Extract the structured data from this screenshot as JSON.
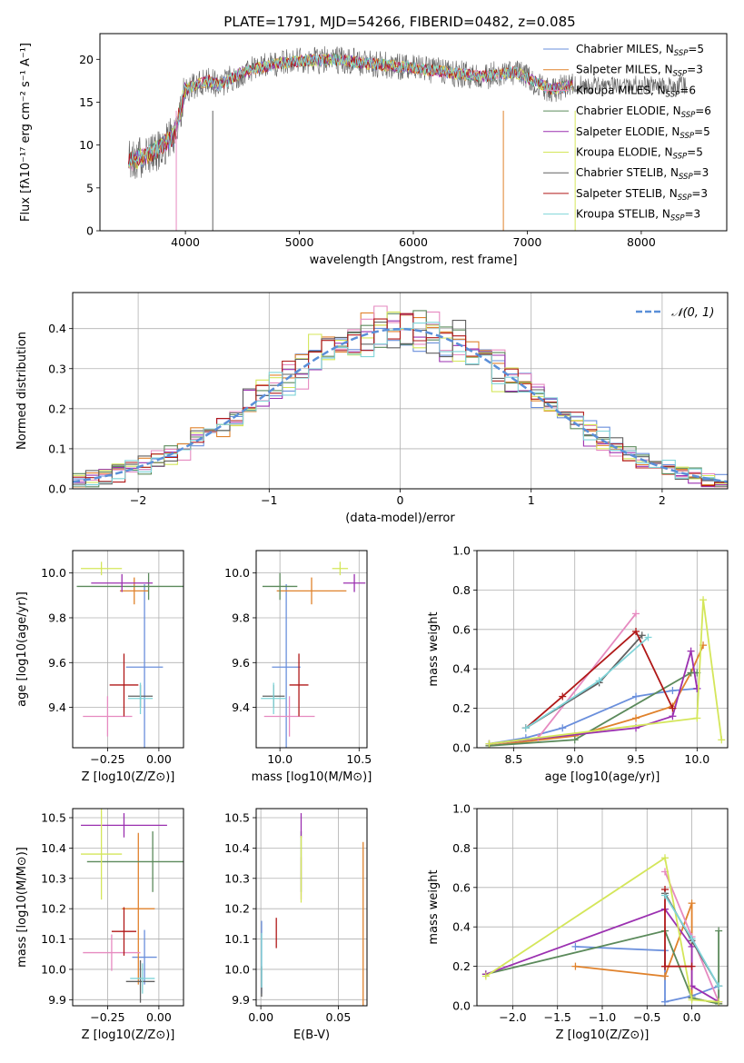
{
  "figure": {
    "title": "PLATE=1791, MJD=54266, FIBERID=0482, z=0.085"
  },
  "colors": {
    "series": [
      "#6a8fdc",
      "#e0822c",
      "#e68ac0",
      "#5b8a5b",
      "#9b30b0",
      "#d4e65a",
      "#606060",
      "#b01818",
      "#7fd4d8"
    ],
    "grid": "#b0b0b0"
  },
  "chart_data": [
    {
      "id": "spectrum",
      "type": "line",
      "xlabel": "wavelength [Angstrom, rest frame]",
      "ylabel": "Flux [fλ10⁻¹⁷ erg cm⁻² s⁻¹ A⁻¹]",
      "xlim": [
        3250,
        8750
      ],
      "ylim": [
        0,
        23
      ],
      "xticks": [
        4000,
        5000,
        6000,
        7000,
        8000
      ],
      "yticks": [
        0,
        5,
        10,
        15,
        20
      ],
      "grid": false,
      "legend": "right",
      "x": [
        3500,
        3700,
        3900,
        4000,
        4200,
        4300,
        4500,
        4800,
        5000,
        5300,
        5600,
        6000,
        6300,
        6600,
        6900,
        7200,
        7400
      ],
      "y": [
        8,
        9,
        11,
        16.5,
        17.5,
        17,
        18.5,
        19.5,
        19.8,
        20,
        19.5,
        19,
        18.5,
        18,
        18.5,
        16.5,
        17
      ],
      "series": [
        {
          "name": "Chabrier MILES, N_SSP=5",
          "legend": "Chabrier MILES, N",
          "nssp": "=5"
        },
        {
          "name": "Salpeter MILES, N_SSP=3",
          "legend": "Salpeter MILES, N",
          "nssp": "=3"
        },
        {
          "name": "Kroupa MILES, N_SSP=6",
          "legend": "Kroupa MILES, N",
          "nssp": "=6"
        },
        {
          "name": "Chabrier ELODIE, N_SSP=6",
          "legend": "Chabrier ELODIE, N",
          "nssp": "=6"
        },
        {
          "name": "Salpeter ELODIE, N_SSP=5",
          "legend": "Salpeter ELODIE, N",
          "nssp": "=5"
        },
        {
          "name": "Kroupa ELODIE, N_SSP=5",
          "legend": "Kroupa ELODIE, N",
          "nssp": "=5"
        },
        {
          "name": "Chabrier STELIB, N_SSP=3",
          "legend": "Chabrier STELIB, N",
          "nssp": "=3"
        },
        {
          "name": "Salpeter STELIB, N_SSP=3",
          "legend": "Salpeter STELIB, N",
          "nssp": "=3"
        },
        {
          "name": "Kroupa STELIB, N_SSP=3",
          "legend": "Kroupa STELIB, N",
          "nssp": "=3"
        }
      ]
    },
    {
      "id": "residuals",
      "type": "histogram",
      "xlabel": "(data-model)/error",
      "ylabel": "Normed distribution",
      "xlim": [
        -2.5,
        2.5
      ],
      "ylim": [
        0,
        0.49
      ],
      "xticks": [
        -2,
        -1,
        0,
        1,
        2
      ],
      "yticks": [
        0.0,
        0.1,
        0.2,
        0.3,
        0.4
      ],
      "grid": true,
      "legend": "top-right",
      "reference_curve": {
        "name": "N(0,1)",
        "mean": 0,
        "sigma": 1
      },
      "bin_width": 0.1
    },
    {
      "id": "age-vs-Z",
      "type": "scatter",
      "xlabel": "Z [log10(Z/Z⊙)]",
      "ylabel": "age  [log10(age/yr)]",
      "xlim": [
        -0.42,
        0.12
      ],
      "ylim": [
        9.22,
        10.1
      ],
      "xticks": [
        -0.25,
        0.0
      ],
      "yticks": [
        9.4,
        9.6,
        9.8,
        10.0
      ],
      "grid": true,
      "points": [
        {
          "x": -0.07,
          "y": 9.58,
          "xerr": 0.09,
          "yerr": 0.37
        },
        {
          "x": -0.12,
          "y": 9.92,
          "xerr": 0.07,
          "yerr": 0.06
        },
        {
          "x": -0.25,
          "y": 9.36,
          "xerr": 0.12,
          "yerr": 0.09
        },
        {
          "x": -0.05,
          "y": 9.94,
          "xerr": 0.35,
          "yerr": 0.06
        },
        {
          "x": -0.18,
          "y": 9.955,
          "xerr": 0.15,
          "yerr": 0.04
        },
        {
          "x": -0.28,
          "y": 10.02,
          "xerr": 0.1,
          "yerr": 0.03
        },
        {
          "x": -0.09,
          "y": 9.45,
          "xerr": 0.06,
          "yerr": 0.05
        },
        {
          "x": -0.17,
          "y": 9.5,
          "xerr": 0.07,
          "yerr": 0.14
        },
        {
          "x": -0.09,
          "y": 9.44,
          "xerr": 0.06,
          "yerr": 0.07
        }
      ]
    },
    {
      "id": "age-vs-mass",
      "type": "scatter",
      "xlabel": "mass [log10(M/M⊙)]",
      "ylabel": "",
      "xlim": [
        9.85,
        10.55
      ],
      "ylim": [
        9.22,
        10.1
      ],
      "xticks": [
        10.0,
        10.5
      ],
      "yticks": [
        9.4,
        9.6,
        9.8,
        10.0
      ],
      "grid": true,
      "points": [
        {
          "x": 10.04,
          "y": 9.58,
          "xerr": 0.09,
          "yerr": 0.37
        },
        {
          "x": 10.2,
          "y": 9.92,
          "xerr": 0.22,
          "yerr": 0.06
        },
        {
          "x": 10.06,
          "y": 9.36,
          "xerr": 0.16,
          "yerr": 0.09
        },
        {
          "x": 10.0,
          "y": 9.94,
          "xerr": 0.11,
          "yerr": 0.06
        },
        {
          "x": 10.47,
          "y": 9.955,
          "xerr": 0.07,
          "yerr": 0.04
        },
        {
          "x": 10.38,
          "y": 10.02,
          "xerr": 0.05,
          "yerr": 0.03
        },
        {
          "x": 9.96,
          "y": 9.45,
          "xerr": 0.07,
          "yerr": 0.05
        },
        {
          "x": 10.12,
          "y": 9.5,
          "xerr": 0.06,
          "yerr": 0.14
        },
        {
          "x": 9.96,
          "y": 9.44,
          "xerr": 0.08,
          "yerr": 0.07
        }
      ]
    },
    {
      "id": "weight-vs-age",
      "type": "line",
      "xlabel": "age  [log10(age/yr)]",
      "ylabel": "mass weight",
      "xlim": [
        8.2,
        10.25
      ],
      "ylim": [
        0,
        1.0
      ],
      "xticks": [
        8.5,
        9.0,
        9.5,
        10.0
      ],
      "yticks": [
        0.0,
        0.2,
        0.4,
        0.6,
        0.8,
        1.0
      ],
      "grid": true,
      "series": [
        {
          "x": [
            8.3,
            8.6,
            8.9,
            9.5,
            9.8,
            10.0
          ],
          "y": [
            0.02,
            0.05,
            0.1,
            0.26,
            0.29,
            0.3
          ]
        },
        {
          "x": [
            8.3,
            9.0,
            9.5,
            9.8,
            9.95,
            10.05
          ],
          "y": [
            0.01,
            0.06,
            0.15,
            0.21,
            0.38,
            0.52
          ]
        },
        {
          "x": [
            8.7,
            9.5
          ],
          "y": [
            0.05,
            0.68
          ]
        },
        {
          "x": [
            8.3,
            9.0,
            9.95,
            10.0
          ],
          "y": [
            0.01,
            0.04,
            0.38,
            0.38
          ]
        },
        {
          "x": [
            8.3,
            9.5,
            9.8,
            9.95,
            10.0
          ],
          "y": [
            0.02,
            0.1,
            0.16,
            0.49,
            0.3
          ]
        },
        {
          "x": [
            8.3,
            10.0,
            10.05,
            10.2
          ],
          "y": [
            0.02,
            0.15,
            0.75,
            0.04
          ]
        },
        {
          "x": [
            8.6,
            9.2,
            9.55
          ],
          "y": [
            0.1,
            0.33,
            0.57
          ]
        },
        {
          "x": [
            8.6,
            8.9,
            9.5,
            9.8
          ],
          "y": [
            0.1,
            0.26,
            0.59,
            0.2
          ]
        },
        {
          "x": [
            8.6,
            9.2,
            9.6
          ],
          "y": [
            0.1,
            0.34,
            0.56
          ]
        }
      ]
    },
    {
      "id": "mass-vs-Z",
      "type": "scatter",
      "xlabel": "Z [log10(Z/Z⊙)]",
      "ylabel": "mass [log10(M/M⊙)]",
      "xlim": [
        -0.42,
        0.12
      ],
      "ylim": [
        9.88,
        10.53
      ],
      "xticks": [
        -0.25,
        0.0
      ],
      "yticks": [
        9.9,
        10.0,
        10.1,
        10.2,
        10.3,
        10.4,
        10.5
      ],
      "grid": true,
      "points": [
        {
          "x": -0.07,
          "y": 10.04,
          "xerr": 0.06,
          "yerr": 0.09
        },
        {
          "x": -0.1,
          "y": 10.2,
          "xerr": 0.08,
          "yerr": 0.25
        },
        {
          "x": -0.23,
          "y": 10.055,
          "xerr": 0.14,
          "yerr": 0.06
        },
        {
          "x": -0.03,
          "y": 10.355,
          "xerr": 0.32,
          "yerr": 0.1
        },
        {
          "x": -0.17,
          "y": 10.475,
          "xerr": 0.21,
          "yerr": 0.04
        },
        {
          "x": -0.28,
          "y": 10.38,
          "xerr": 0.1,
          "yerr": 0.15
        },
        {
          "x": -0.09,
          "y": 9.96,
          "xerr": 0.07,
          "yerr": 0.07
        },
        {
          "x": -0.17,
          "y": 10.125,
          "xerr": 0.06,
          "yerr": 0.08
        },
        {
          "x": -0.08,
          "y": 9.97,
          "xerr": 0.06,
          "yerr": 0.05
        }
      ]
    },
    {
      "id": "mass-vs-ebv",
      "type": "scatter",
      "xlabel": "E(B-V)",
      "ylabel": "",
      "xlim": [
        -0.003,
        0.0685
      ],
      "ylim": [
        9.88,
        10.53
      ],
      "xticks": [
        0.0,
        0.05
      ],
      "yticks": [
        9.9,
        10.0,
        10.1,
        10.2,
        10.3,
        10.4,
        10.5
      ],
      "grid": true,
      "points": [
        {
          "x": 0.0005,
          "y": 10.04,
          "xerr": 0,
          "yerr": 0.12
        },
        {
          "x": 0.066,
          "y": 10.15,
          "xerr": 0,
          "yerr": 0.27
        },
        {
          "x": 0.026,
          "y": 10.3,
          "xerr": 0,
          "yerr": 0.07
        },
        {
          "x": 0.026,
          "y": 10.355,
          "xerr": 0,
          "yerr": 0.1
        },
        {
          "x": 0.026,
          "y": 10.475,
          "xerr": 0,
          "yerr": 0.04
        },
        {
          "x": 0.026,
          "y": 10.33,
          "xerr": 0,
          "yerr": 0.11
        },
        {
          "x": 0.0005,
          "y": 9.96,
          "xerr": 0,
          "yerr": 0.05
        },
        {
          "x": 0.01,
          "y": 10.12,
          "xerr": 0,
          "yerr": 0.05
        },
        {
          "x": 0.0005,
          "y": 10.03,
          "xerr": 0,
          "yerr": 0.09
        }
      ]
    },
    {
      "id": "weight-vs-Z",
      "type": "line",
      "xlabel": "Z [log10(Z/Z⊙)]",
      "ylabel": "mass weight",
      "xlim": [
        -2.4,
        0.4
      ],
      "ylim": [
        0,
        1.0
      ],
      "xticks": [
        -2.0,
        -1.5,
        -1.0,
        -0.5,
        0.0
      ],
      "yticks": [
        0.0,
        0.2,
        0.4,
        0.6,
        0.8,
        1.0
      ],
      "grid": true,
      "series": [
        {
          "x": [
            -1.3,
            -0.3,
            -0.3,
            0.0,
            0.3
          ],
          "y": [
            0.3,
            0.28,
            0.02,
            0.05,
            0.1
          ]
        },
        {
          "x": [
            -1.3,
            -0.3,
            0.0,
            0.0,
            0.3
          ],
          "y": [
            0.2,
            0.15,
            0.52,
            0.04,
            0.01
          ]
        },
        {
          "x": [
            -0.3,
            0.0,
            0.3
          ],
          "y": [
            0.68,
            0.35,
            0.02
          ]
        },
        {
          "x": [
            -2.3,
            -0.3,
            0.0,
            0.3,
            0.3
          ],
          "y": [
            0.16,
            0.38,
            0.04,
            0.01,
            0.38
          ]
        },
        {
          "x": [
            -2.3,
            -0.3,
            0.0,
            0.0,
            0.3
          ],
          "y": [
            0.16,
            0.49,
            0.3,
            0.1,
            0.02
          ]
        },
        {
          "x": [
            -2.3,
            -0.3,
            0.0,
            0.3
          ],
          "y": [
            0.15,
            0.75,
            0.03,
            0.02
          ]
        },
        {
          "x": [
            -0.3,
            0.0,
            0.3
          ],
          "y": [
            0.57,
            0.33,
            0.1
          ]
        },
        {
          "x": [
            -0.3,
            -0.3,
            0.0,
            -0.3
          ],
          "y": [
            0.59,
            0.2,
            0.2,
            0.2
          ]
        },
        {
          "x": [
            -0.3,
            0.0,
            0.3
          ],
          "y": [
            0.56,
            0.34,
            0.1
          ]
        }
      ]
    }
  ]
}
